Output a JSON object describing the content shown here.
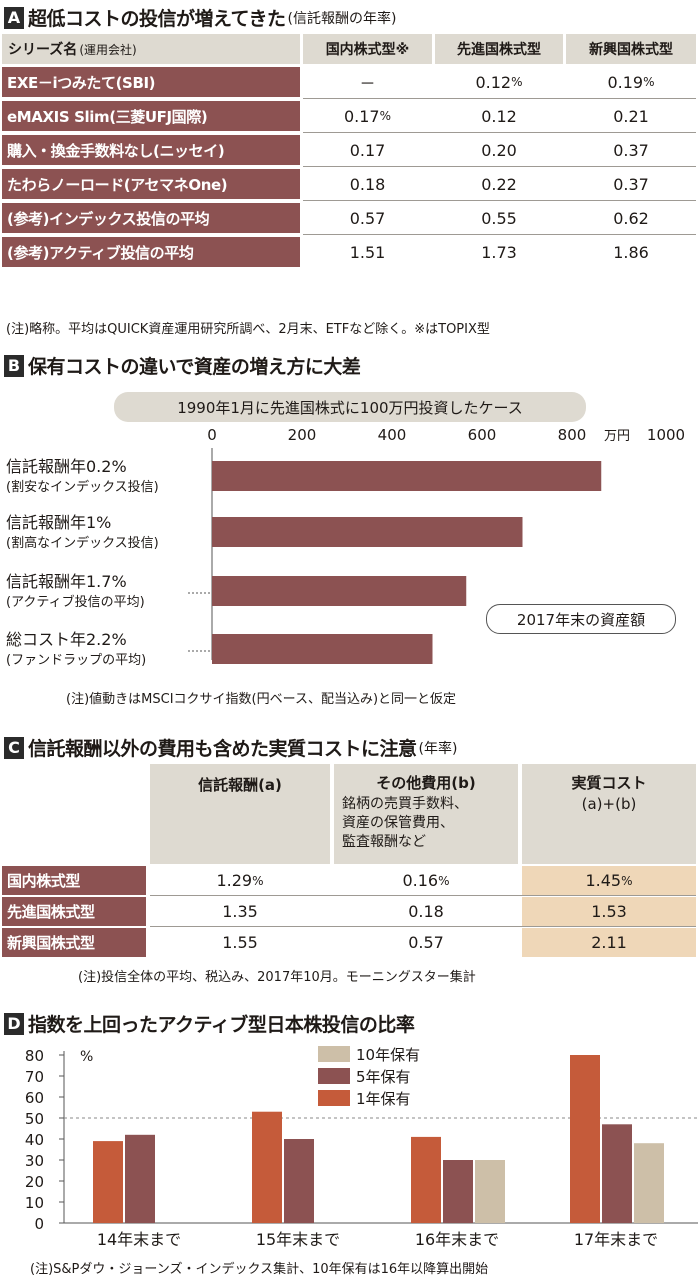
{
  "section_a": {
    "letter": "A",
    "title": "超低コストの投信が増えてきた",
    "subtitle": "(信託報酬の年率)",
    "header": {
      "series": "シリーズ名",
      "series_sub": "(運用会社)",
      "cols": [
        "国内株式型※",
        "先進国株式型",
        "新興国株式型"
      ]
    },
    "rows": [
      {
        "name": "EXE－iつみたて(SBI)",
        "values": [
          "－",
          "0.12",
          "0.19"
        ],
        "units": [
          "",
          "%",
          "%"
        ]
      },
      {
        "name": "eMAXIS Slim(三菱UFJ国際)",
        "values": [
          "0.17",
          "0.12",
          "0.21"
        ],
        "units": [
          "%",
          "",
          ""
        ]
      },
      {
        "name": "購入・換金手数料なし(ニッセイ)",
        "values": [
          "0.17",
          "0.20",
          "0.37"
        ],
        "units": [
          "",
          "",
          ""
        ]
      },
      {
        "name": "たわらノーロード(アセマネOne)",
        "values": [
          "0.18",
          "0.22",
          "0.37"
        ],
        "units": [
          "",
          "",
          ""
        ]
      },
      {
        "name": "(参考)インデックス投信の平均",
        "values": [
          "0.57",
          "0.55",
          "0.62"
        ],
        "units": [
          "",
          "",
          ""
        ]
      },
      {
        "name": "(参考)アクティブ投信の平均",
        "values": [
          "1.51",
          "1.73",
          "1.86"
        ],
        "units": [
          "",
          "",
          ""
        ]
      }
    ],
    "note": "(注)略称。平均はQUICK資産運用研究所調べ、2月末、ETFなど除く。※はTOPIX型"
  },
  "section_b": {
    "letter": "B",
    "title": "保有コストの違いで資産の増え方に大差",
    "case_label": "1990年1月に先進国株式に100万円投資したケース",
    "unit_label": "万円",
    "value_label": "2017年末の資産額",
    "note": "(注)値動きはMSCIコクサイ指数(円ベース、配当込み)と同一と仮定"
  },
  "section_c": {
    "letter": "C",
    "title": "信託報酬以外の費用も含めた実質コストに注意",
    "subtitle": "(年率)",
    "header": {
      "col1": "信託報酬(a)",
      "col2": "その他費用(b)",
      "col2_detail": [
        "銘柄の売買手数料、",
        "資産の保管費用、",
        "監査報酬など"
      ],
      "col3": "実質コスト",
      "col3_sub": "(a)+(b)"
    },
    "rows": [
      {
        "name": "国内株式型",
        "values": [
          "1.29",
          "0.16",
          "1.45"
        ],
        "units": [
          "%",
          "%",
          "%"
        ]
      },
      {
        "name": "先進国株式型",
        "values": [
          "1.35",
          "0.18",
          "1.53"
        ],
        "units": [
          "",
          "",
          ""
        ]
      },
      {
        "name": "新興国株式型",
        "values": [
          "1.55",
          "0.57",
          "2.11"
        ],
        "units": [
          "",
          "",
          ""
        ]
      }
    ],
    "note": "(注)投信全体の平均、税込み、2017年10月。モーニングスター集計"
  },
  "section_d": {
    "letter": "D",
    "title": "指数を上回ったアクティブ型日本株投信の比率",
    "unit_label": "%",
    "note": "(注)S&Pダウ・ジョーンズ・インデックス集計、10年保有は16年以降算出開始"
  },
  "chart_data": [
    {
      "type": "bar",
      "orientation": "horizontal",
      "categories": [
        {
          "label": "信託報酬年0.2%",
          "sub": "(割安なインデックス投信)"
        },
        {
          "label": "信託報酬年1%",
          "sub": "(割高なインデックス投信)"
        },
        {
          "label": "信託報酬年1.7%",
          "sub": "(アクティブ投信の平均)"
        },
        {
          "label": "総コスト年2.2%",
          "sub": "(ファンドラップの平均)"
        }
      ],
      "values": [
        865,
        690,
        565,
        490
      ],
      "xlim": [
        0,
        1000
      ],
      "xticks": [
        0,
        200,
        400,
        600,
        800,
        1000
      ],
      "xlabel": "万円",
      "color": "#8c5252",
      "grid": false
    },
    {
      "type": "bar",
      "orientation": "vertical",
      "categories": [
        "14年末まで",
        "15年末まで",
        "16年末まで",
        "17年末まで"
      ],
      "series": [
        {
          "name": "1年保有",
          "color": "#c55b3a",
          "values": [
            39,
            53,
            41,
            80
          ]
        },
        {
          "name": "5年保有",
          "color": "#8c5252",
          "values": [
            42,
            40,
            30,
            47
          ]
        },
        {
          "name": "10年保有",
          "color": "#cdbfa8",
          "values": [
            null,
            null,
            30,
            38
          ]
        }
      ],
      "ylim": [
        0,
        80
      ],
      "yticks": [
        0,
        10,
        20,
        30,
        40,
        50,
        60,
        70,
        80
      ],
      "ylabel": "%",
      "reference_line": 50,
      "legend_position": "top-center"
    }
  ]
}
